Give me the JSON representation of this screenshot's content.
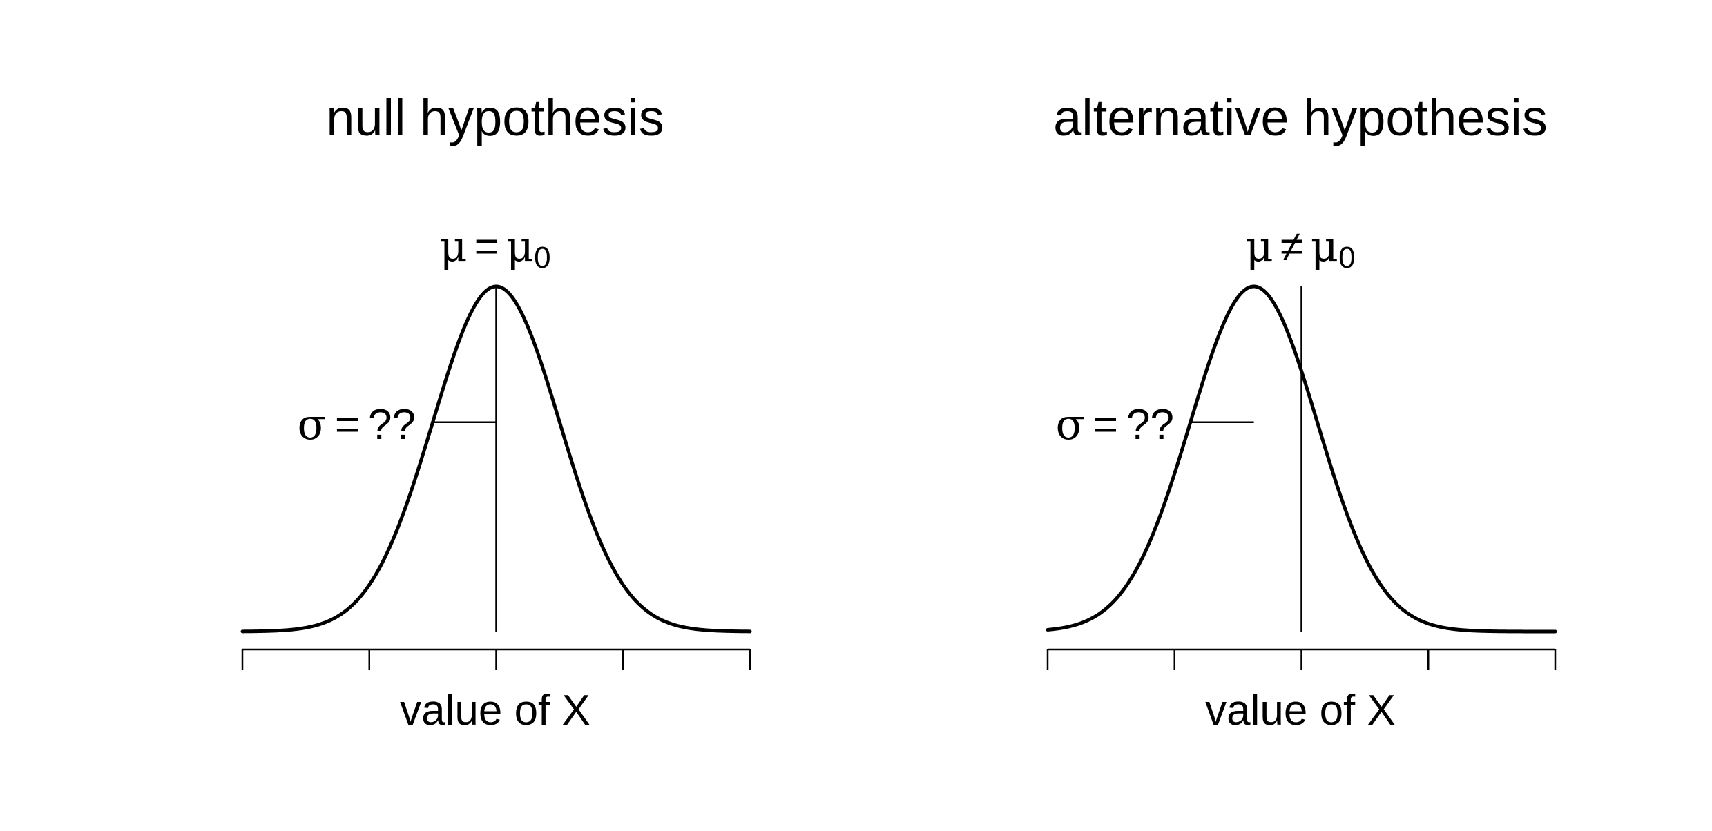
{
  "panels": [
    {
      "title": "null hypothesis",
      "mean_label": {
        "symbol": "μ",
        "relation": "=",
        "ref_symbol": "μ",
        "ref_subscript": "0"
      },
      "sd_label": {
        "symbol": "σ",
        "relation": "=",
        "value": "??"
      },
      "xlabel": "value of X",
      "curve_mean": 0,
      "reference_mean": 0
    },
    {
      "title": "alternative hypothesis",
      "mean_label": {
        "symbol": "μ",
        "relation": "≠",
        "ref_symbol": "μ",
        "ref_subscript": "0"
      },
      "sd_label": {
        "symbol": "σ",
        "relation": "=",
        "value": "??"
      },
      "xlabel": "value of X",
      "curve_mean": -0.75,
      "reference_mean": 0
    }
  ],
  "chart_data": {
    "type": "line",
    "curve": "normal density",
    "sd": 1,
    "xlim": [
      -4,
      4
    ],
    "ticks": [
      -4,
      -2,
      0,
      2,
      4
    ],
    "tick_labels_shown": false,
    "grid": false
  }
}
